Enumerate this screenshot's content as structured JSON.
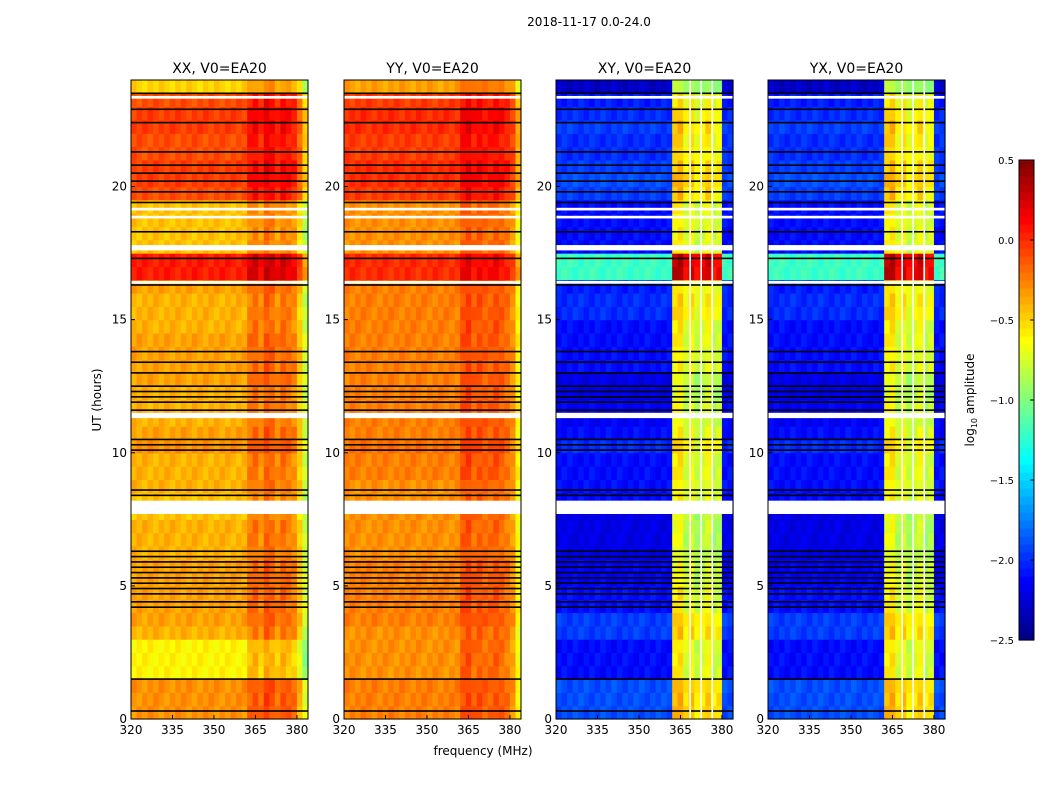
{
  "chart_data": {
    "type": "heatmap",
    "title": "2018-11-17 0.0-24.0",
    "xlabel": "frequency (MHz)",
    "ylabel": "UT (hours)",
    "xlim": [
      320,
      384
    ],
    "ylim": [
      0,
      24
    ],
    "xticks": [
      "320",
      "335",
      "350",
      "365",
      "380"
    ],
    "xtick_values": [
      320,
      335,
      350,
      365,
      380
    ],
    "yticks": [
      "0",
      "5",
      "10",
      "15",
      "20"
    ],
    "ytick_values": [
      0,
      5,
      10,
      15,
      20
    ],
    "time_bin_hours": 0.5,
    "freq_bin_mhz": 2,
    "colorbar": {
      "label_prefix": "log",
      "label_sub": "10",
      "label_suffix": " amplitude",
      "range": [
        -2.5,
        0.5
      ],
      "colormap": "jet",
      "ticks": [
        "0.5",
        "0.0",
        "−0.5",
        "−1.0",
        "−1.5",
        "−2.0",
        "−2.5"
      ],
      "tick_values": [
        0.5,
        0.0,
        -0.5,
        -1.0,
        -1.5,
        -2.0,
        -2.5
      ]
    },
    "flagged_white_hours": [
      [
        7.7,
        8.2
      ],
      [
        11.3,
        11.5
      ],
      [
        16.35,
        16.45
      ],
      [
        17.6,
        17.8
      ],
      [
        18.8,
        18.9
      ],
      [
        19.1,
        19.2
      ],
      [
        23.3,
        23.4
      ]
    ],
    "flagged_black_hours": [
      0.3,
      1.5,
      4.2,
      4.4,
      4.7,
      4.9,
      5.1,
      5.3,
      5.5,
      5.7,
      5.9,
      6.1,
      6.3,
      8.4,
      8.6,
      10.1,
      10.3,
      10.5,
      11.6,
      11.9,
      12.1,
      12.3,
      12.5,
      13.0,
      13.4,
      13.8,
      16.3,
      17.3,
      18.3,
      19.4,
      19.8,
      20.2,
      20.5,
      20.8,
      21.3,
      22.4,
      22.9,
      23.5
    ],
    "panels": [
      {
        "title": "XX, V0=EA20",
        "row_levels": [
          -0.3,
          -0.3,
          -0.3,
          -0.6,
          -0.6,
          -0.6,
          -0.4,
          -0.35,
          -0.35,
          -0.35,
          -0.35,
          -0.35,
          -0.4,
          -0.4,
          -0.4,
          -0.45,
          -0.45,
          -0.4,
          -0.4,
          -0.4,
          -0.3,
          -0.35,
          -0.4,
          -0.4,
          -0.4,
          -0.35,
          -0.35,
          -0.35,
          -0.35,
          -0.4,
          -0.4,
          -0.4,
          -0.35,
          0.05,
          0.05,
          -0.45,
          -0.45,
          -0.45,
          -0.45,
          -0.1,
          -0.05,
          -0.05,
          -0.1,
          -0.1,
          -0.05,
          -0.05,
          -0.1,
          -0.5
        ],
        "col_offsets": [
          0,
          0,
          0,
          0,
          0,
          0,
          0,
          0,
          0,
          0,
          0,
          0,
          0,
          0,
          0,
          0,
          0,
          0,
          0,
          0,
          0,
          0.15,
          0.2,
          0.1,
          0.25,
          0.2,
          0.1,
          0.2,
          0.15,
          0.1,
          -0.1,
          -0.4
        ],
        "nan_columns_mhz": []
      },
      {
        "title": "YY, V0=EA20",
        "row_levels": [
          -0.25,
          -0.25,
          -0.25,
          -0.3,
          -0.3,
          -0.3,
          -0.3,
          -0.25,
          -0.25,
          -0.25,
          -0.25,
          -0.25,
          -0.3,
          -0.3,
          -0.3,
          -0.3,
          -0.3,
          -0.3,
          -0.25,
          -0.25,
          -0.2,
          -0.25,
          -0.25,
          -0.25,
          -0.25,
          -0.25,
          -0.25,
          -0.25,
          -0.25,
          -0.25,
          -0.25,
          -0.25,
          -0.25,
          0.0,
          0.0,
          -0.3,
          -0.3,
          -0.3,
          -0.3,
          -0.05,
          0.0,
          0.0,
          -0.05,
          -0.05,
          0.0,
          0.0,
          -0.05,
          -0.35
        ],
        "col_offsets": [
          0,
          0,
          0,
          0,
          0,
          0,
          0,
          0,
          0,
          0,
          0,
          0,
          0,
          0,
          0,
          0,
          0,
          0,
          0,
          0,
          0,
          0.15,
          0.2,
          0.1,
          0.15,
          0.1,
          0.1,
          0.15,
          0.1,
          0.05,
          -0.05,
          -0.35
        ],
        "nan_columns_mhz": []
      },
      {
        "title": "XY, V0=EA20",
        "row_levels": [
          -1.9,
          -1.9,
          -1.9,
          -2.1,
          -2.1,
          -2.1,
          -1.95,
          -1.95,
          -2.1,
          -2.1,
          -2.15,
          -2.15,
          -2.2,
          -2.2,
          -2.2,
          -2.2,
          -2.1,
          -2.1,
          -2.1,
          -2.1,
          -2.0,
          -2.1,
          -2.15,
          -2.15,
          -2.2,
          -2.2,
          -2.1,
          -2.1,
          -2.1,
          -2.1,
          -2.0,
          -2.0,
          -2.05,
          -1.2,
          -1.2,
          -2.1,
          -2.1,
          -2.1,
          -2.1,
          -1.95,
          -1.9,
          -1.95,
          -2.0,
          -2.0,
          -1.95,
          -2.0,
          -2.05,
          -2.3
        ],
        "col_offsets": [
          0,
          0,
          0,
          0,
          0,
          0,
          0,
          0,
          0,
          0,
          0,
          0,
          0,
          0,
          0,
          0,
          0,
          0,
          0,
          0,
          0,
          1.5,
          1.55,
          1.35,
          1.45,
          1.3,
          1.35,
          1.45,
          1.3,
          1.35,
          0,
          0
        ],
        "nan_columns_mhz": [
          368.5,
          372.5,
          376.5
        ]
      },
      {
        "title": "YX, V0=EA20",
        "row_levels": [
          -1.9,
          -1.9,
          -1.9,
          -2.1,
          -2.1,
          -2.1,
          -1.95,
          -1.95,
          -2.1,
          -2.1,
          -2.15,
          -2.15,
          -2.2,
          -2.2,
          -2.2,
          -2.2,
          -2.1,
          -2.1,
          -2.1,
          -2.1,
          -2.0,
          -2.1,
          -2.15,
          -2.15,
          -2.2,
          -2.2,
          -2.1,
          -2.1,
          -2.1,
          -2.1,
          -2.0,
          -2.0,
          -2.05,
          -1.2,
          -1.2,
          -2.1,
          -2.1,
          -2.1,
          -2.1,
          -1.95,
          -1.9,
          -1.95,
          -2.0,
          -2.0,
          -1.95,
          -2.0,
          -2.05,
          -2.3
        ],
        "col_offsets": [
          0,
          0,
          0,
          0,
          0,
          0,
          0,
          0,
          0,
          0,
          0,
          0,
          0,
          0,
          0,
          0,
          0,
          0,
          0,
          0,
          0,
          1.5,
          1.55,
          1.35,
          1.45,
          1.3,
          1.35,
          1.45,
          1.3,
          1.35,
          0,
          0
        ],
        "nan_columns_mhz": [
          368.5,
          372.5,
          376.5
        ]
      }
    ]
  }
}
